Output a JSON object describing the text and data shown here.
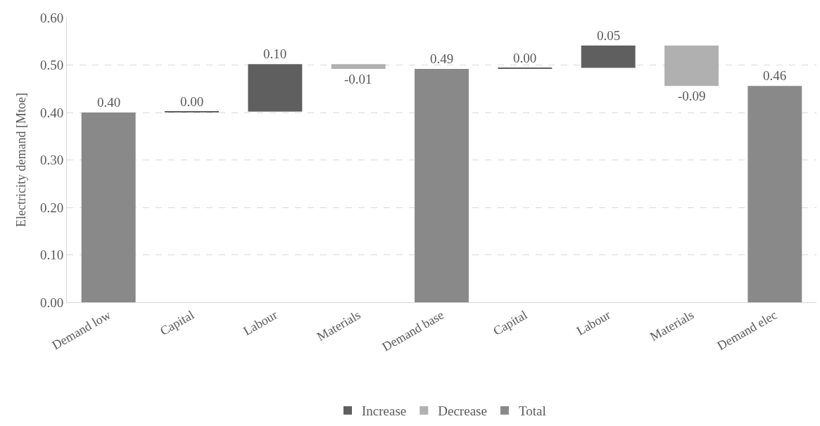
{
  "chart_data": {
    "type": "bar",
    "ylabel": "Electricity demand [Mtoe]",
    "categories": [
      "Demand low",
      "Capital",
      "Labour",
      "Materials",
      "Demand base",
      "Capital",
      "Labour",
      "Materials",
      "Demand elec"
    ],
    "series": [
      {
        "name": "Increase",
        "color": "#5f5f5f",
        "values": [
          null,
          0.002,
          0.1,
          null,
          null,
          0.002,
          0.047,
          null,
          null
        ],
        "base": [
          null,
          0.4,
          0.402,
          null,
          null,
          0.492,
          0.494,
          null,
          null
        ],
        "value_labels": [
          null,
          "0.00",
          "0.10",
          null,
          null,
          "0.00",
          "0.05",
          null,
          null
        ]
      },
      {
        "name": "Decrease",
        "color": "#b0b0b0",
        "values": [
          null,
          null,
          null,
          -0.01,
          null,
          null,
          null,
          -0.085,
          null
        ],
        "base": [
          null,
          null,
          null,
          0.502,
          null,
          null,
          null,
          0.541,
          null
        ],
        "value_labels": [
          null,
          null,
          null,
          "-0.01",
          null,
          null,
          null,
          "-0.09",
          null
        ]
      },
      {
        "name": "Total",
        "color": "#898989",
        "values": [
          0.4,
          null,
          null,
          null,
          0.492,
          null,
          null,
          null,
          0.456
        ],
        "value_labels": [
          "0.40",
          null,
          null,
          null,
          "0.49",
          null,
          null,
          null,
          "0.46"
        ]
      }
    ],
    "ylim": [
      0,
      0.6
    ],
    "yticks": [
      {
        "value": 0,
        "label": "0.00"
      },
      {
        "value": 0.1,
        "label": "0.10"
      },
      {
        "value": 0.2,
        "label": "0.20"
      },
      {
        "value": 0.3,
        "label": "0.30"
      },
      {
        "value": 0.4,
        "label": "0.40"
      },
      {
        "value": 0.5,
        "label": "0.50"
      },
      {
        "value": 0.6,
        "label": "0.60"
      }
    ],
    "grid": "y",
    "legend": "bottom"
  }
}
